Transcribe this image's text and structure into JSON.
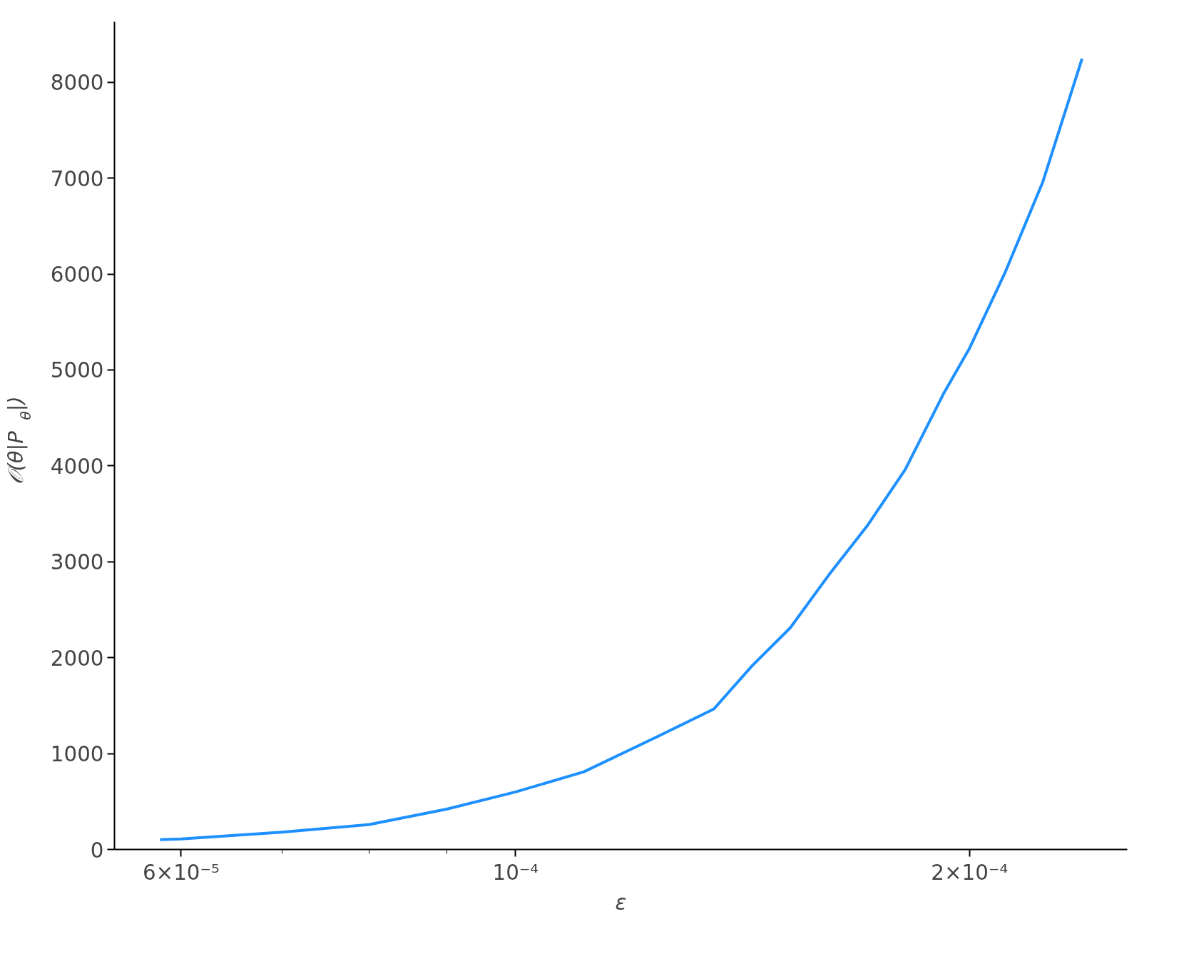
{
  "chart_data": {
    "type": "line",
    "xlabel": "ε",
    "ylabel": "𝒪(θ|P$_{θ}$|)",
    "log": "x",
    "grid": false,
    "xlim": [
      5.42e-05,
      0.0002545
    ],
    "ylim": [
      0,
      8630
    ],
    "xticks": [
      {
        "value": 6e-05,
        "label": "6×10⁻⁵"
      },
      {
        "value": 7e-05,
        "label": null
      },
      {
        "value": 8e-05,
        "label": null
      },
      {
        "value": 9e-05,
        "label": null
      },
      {
        "value": 0.0001,
        "label": "10⁻⁴"
      },
      {
        "value": 0.0002,
        "label": "2×10⁻⁴"
      }
    ],
    "yticks": [
      0,
      1000,
      2000,
      3000,
      4000,
      5000,
      6000,
      7000,
      8000
    ],
    "series": [
      {
        "color": "#1e90ff",
        "x": [
          5.81e-05,
          6e-05,
          7e-05,
          8e-05,
          9e-05,
          0.0001,
          0.000111,
          0.0001247,
          0.0001354,
          0.0001435,
          0.0001521,
          0.0001613,
          0.000171,
          0.0001813,
          0.0001922,
          0.0002,
          0.0002111,
          0.0002237,
          0.0002375
        ],
        "values": [
          102,
          110,
          180,
          260,
          420,
          600,
          810,
          1190,
          1466,
          1915,
          2310,
          2860,
          3370,
          3960,
          4750,
          5225,
          6010,
          6960,
          8244
        ]
      }
    ]
  }
}
